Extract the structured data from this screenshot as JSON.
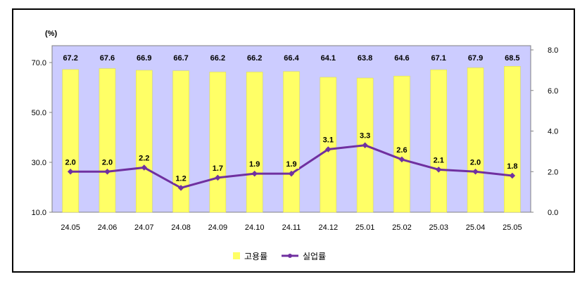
{
  "chart_data": {
    "type": "bar",
    "title": "",
    "unit_label": "(%)",
    "categories": [
      "24.05",
      "24.06",
      "24.07",
      "24.08",
      "24.09",
      "24.10",
      "24.11",
      "24.12",
      "25.01",
      "25.02",
      "25.03",
      "25.04",
      "25.05"
    ],
    "series": [
      {
        "name": "고용률",
        "type": "bar",
        "axis": "left",
        "color": "#ffff66",
        "values": [
          67.2,
          67.6,
          66.9,
          66.7,
          66.2,
          66.2,
          66.4,
          64.1,
          63.8,
          64.6,
          67.1,
          67.9,
          68.5
        ],
        "labels": [
          "67.2",
          "67.6",
          "66.9",
          "66.7",
          "66.2",
          "66.2",
          "66.4",
          "64.1",
          "63.8",
          "64.6",
          "67.1",
          "67.9",
          "68.5"
        ]
      },
      {
        "name": "실업률",
        "type": "line",
        "axis": "right",
        "color": "#7030a0",
        "values": [
          2.0,
          2.0,
          2.2,
          1.2,
          1.7,
          1.9,
          1.9,
          3.1,
          3.3,
          2.6,
          2.1,
          2.0,
          1.8
        ],
        "labels": [
          "2.0",
          "2.0",
          "2.2",
          "1.2",
          "1.7",
          "1.9",
          "1.9",
          "3.1",
          "3.3",
          "2.6",
          "2.1",
          "2.0",
          "1.8"
        ]
      }
    ],
    "y_left": {
      "min": 10,
      "max": 70,
      "ticks": [
        "10.0",
        "30.0",
        "50.0",
        "70.0"
      ],
      "tick_values": [
        10,
        30,
        50,
        70
      ]
    },
    "y_right": {
      "min": 0,
      "max": 8,
      "ticks": [
        "0.0",
        "2.0",
        "4.0",
        "6.0",
        "8.0"
      ],
      "tick_values": [
        0,
        2,
        4,
        6,
        8
      ]
    },
    "plot_background": "#ccccff",
    "grid": false,
    "legend_position": "bottom"
  }
}
